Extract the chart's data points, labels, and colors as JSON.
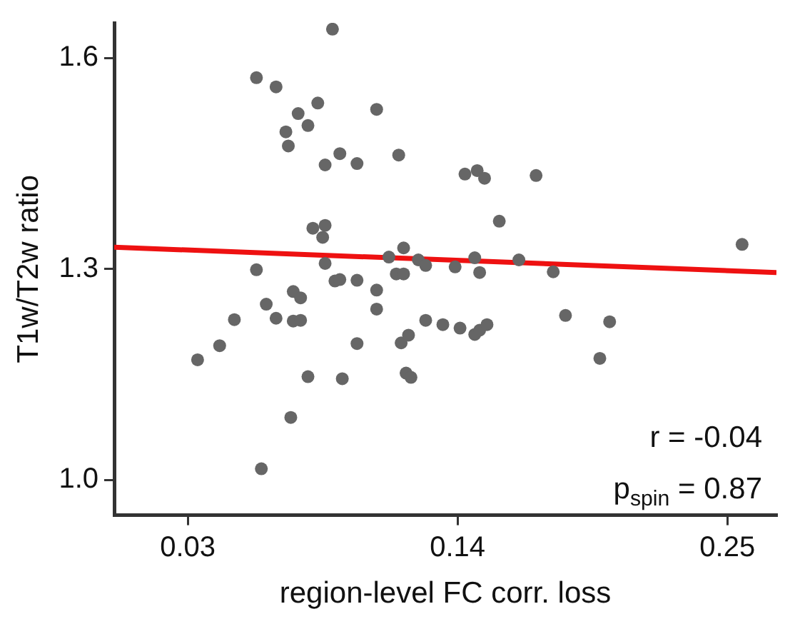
{
  "chart_data": {
    "type": "scatter",
    "xlabel": "region-level FC corr. loss",
    "ylabel": "T1w/T2w ratio",
    "xlim": [
      0,
      0.27
    ],
    "ylim": [
      0.95,
      1.65
    ],
    "xticks": [
      0.03,
      0.14,
      0.25
    ],
    "yticks": [
      {
        "value": 1.0,
        "label": "1.0"
      },
      {
        "value": 1.3,
        "label": "1.3"
      },
      {
        "value": 1.6,
        "label": "1.6"
      }
    ],
    "grid": false,
    "legend": false,
    "marker": "circle",
    "series": [
      {
        "type": "scatter",
        "color": "#666666",
        "x": [
          0.089,
          0.058,
          0.066,
          0.083,
          0.107,
          0.075,
          0.079,
          0.07,
          0.071,
          0.092,
          0.116,
          0.086,
          0.099,
          0.081,
          0.086,
          0.085,
          0.118,
          0.112,
          0.124,
          0.127,
          0.058,
          0.086,
          0.09,
          0.092,
          0.099,
          0.115,
          0.118,
          0.107,
          0.073,
          0.076,
          0.062,
          0.107,
          0.049,
          0.066,
          0.073,
          0.076,
          0.127,
          0.134,
          0.043,
          0.099,
          0.117,
          0.12,
          0.034,
          0.079,
          0.093,
          0.119,
          0.121,
          0.072,
          0.06,
          0.143,
          0.148,
          0.151,
          0.172,
          0.157,
          0.256,
          0.147,
          0.165,
          0.139,
          0.149,
          0.179,
          0.141,
          0.147,
          0.149,
          0.152,
          0.184,
          0.202,
          0.198
        ],
        "values": [
          1.641,
          1.572,
          1.559,
          1.536,
          1.527,
          1.521,
          1.504,
          1.495,
          1.475,
          1.464,
          1.462,
          1.448,
          1.45,
          1.358,
          1.362,
          1.345,
          1.33,
          1.317,
          1.313,
          1.305,
          1.299,
          1.308,
          1.283,
          1.285,
          1.284,
          1.293,
          1.293,
          1.27,
          1.268,
          1.259,
          1.25,
          1.243,
          1.228,
          1.23,
          1.226,
          1.227,
          1.227,
          1.221,
          1.191,
          1.194,
          1.195,
          1.206,
          1.171,
          1.147,
          1.144,
          1.152,
          1.146,
          1.089,
          1.016,
          1.435,
          1.44,
          1.429,
          1.433,
          1.368,
          1.335,
          1.316,
          1.313,
          1.303,
          1.295,
          1.296,
          1.216,
          1.207,
          1.213,
          1.221,
          1.234,
          1.225,
          1.173
        ]
      },
      {
        "type": "line",
        "color": "#ee1111",
        "x": [
          0,
          0.27
        ],
        "values": [
          1.331,
          1.295
        ],
        "marker": "none",
        "line_style": "solid"
      }
    ],
    "annotations": [
      "r = -0.04",
      "p$_{spin}$ = 0.87"
    ]
  }
}
